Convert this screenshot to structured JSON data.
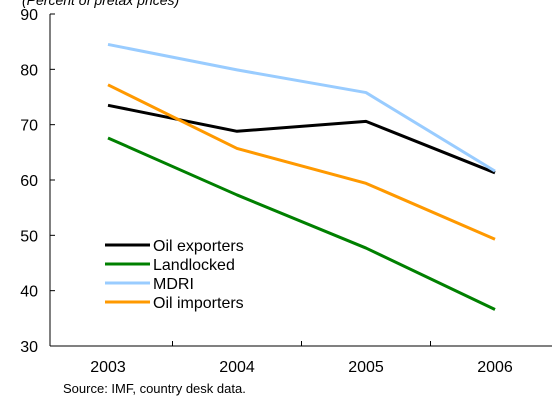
{
  "chart_data": {
    "type": "line",
    "title": "",
    "subtitle": "(Percent of pretax prices)",
    "x": [
      "2003",
      "2004",
      "2005",
      "2006"
    ],
    "xlabel": "",
    "ylabel": "",
    "ylim": [
      30,
      90
    ],
    "yticks": [
      30,
      40,
      50,
      60,
      70,
      80,
      90
    ],
    "grid": false,
    "legend_placement": "bottom-left",
    "series": [
      {
        "name": "Oil exporters",
        "color": "#000000",
        "values": [
          73.5,
          68.8,
          70.6,
          61.3
        ]
      },
      {
        "name": "Landlocked",
        "color": "#008000",
        "values": [
          67.6,
          57.3,
          47.7,
          36.6
        ]
      },
      {
        "name": "MDRI",
        "color": "#99ccff",
        "values": [
          84.5,
          79.9,
          75.8,
          61.6
        ]
      },
      {
        "name": "Oil importers",
        "color": "#ff9900",
        "values": [
          77.2,
          65.7,
          59.4,
          49.3
        ]
      }
    ]
  },
  "source_note": "Source: IMF, country desk data."
}
